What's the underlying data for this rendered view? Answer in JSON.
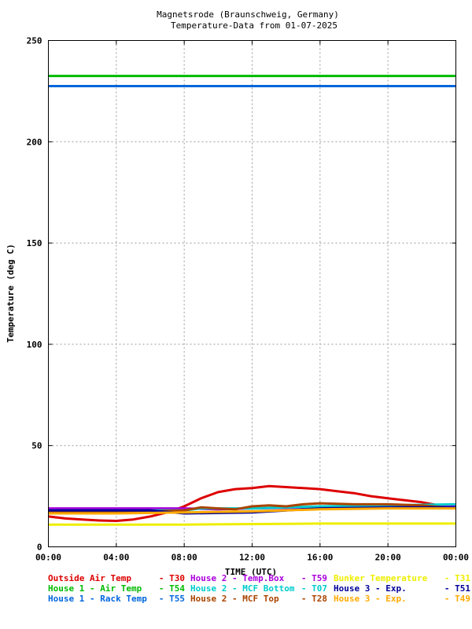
{
  "chart_data": {
    "type": "line",
    "title": "Magnetsrode (Braunschweig, Germany)",
    "subtitle": "Temperature-Data from 01-07-2025",
    "xlabel": "TIME (UTC)",
    "ylabel": "Temperature (deg C)",
    "xlim": [
      0,
      24
    ],
    "ylim": [
      0,
      250
    ],
    "x_ticks": [
      {
        "value": 0,
        "label": "00:00"
      },
      {
        "value": 4,
        "label": "04:00"
      },
      {
        "value": 8,
        "label": "08:00"
      },
      {
        "value": 12,
        "label": "12:00"
      },
      {
        "value": 16,
        "label": "16:00"
      },
      {
        "value": 20,
        "label": "20:00"
      },
      {
        "value": 24,
        "label": "00:00"
      }
    ],
    "y_ticks": [
      {
        "value": 0,
        "label": "0"
      },
      {
        "value": 50,
        "label": "50"
      },
      {
        "value": 100,
        "label": "100"
      },
      {
        "value": 150,
        "label": "150"
      },
      {
        "value": 200,
        "label": "200"
      },
      {
        "value": 250,
        "label": "250"
      }
    ],
    "grid": true,
    "legend_position": "bottom",
    "series": [
      {
        "name": "Outside Air Temp",
        "code": "T30",
        "color": "#dd0000",
        "x": [
          0,
          1,
          2,
          3,
          4,
          5,
          6,
          7,
          8,
          9,
          10,
          11,
          12,
          13,
          14,
          15,
          16,
          17,
          18,
          19,
          20,
          21,
          22,
          23,
          24
        ],
        "y": [
          15,
          14,
          13.5,
          13,
          12.8,
          13.5,
          15,
          17,
          20,
          24,
          27,
          28.5,
          29,
          30,
          29.5,
          29,
          28.5,
          27.5,
          26.5,
          25,
          24,
          23,
          22,
          20.5,
          20
        ]
      },
      {
        "name": "House 1 - Air  Temp",
        "code": "T54",
        "color": "#00bb00",
        "x": [
          0,
          24
        ],
        "y": [
          232.5,
          232.5
        ]
      },
      {
        "name": "House 1 - Rack Temp",
        "code": "T55",
        "color": "#0066dd",
        "x": [
          0,
          24
        ],
        "y": [
          227.5,
          227.5
        ]
      },
      {
        "name": "House 2 - Temp.Box",
        "code": "T59",
        "color": "#aa00dd",
        "x": [
          0,
          4,
          8,
          10,
          12,
          16,
          20,
          24
        ],
        "y": [
          19,
          19,
          19,
          18.5,
          19,
          19.5,
          20,
          20
        ]
      },
      {
        "name": "House 2 - MCF Bottom",
        "code": "T07",
        "color": "#00cccc",
        "x": [
          0,
          4,
          8,
          9,
          12,
          16,
          20,
          24
        ],
        "y": [
          18,
          18,
          18,
          19,
          19,
          20,
          20.5,
          21
        ]
      },
      {
        "name": "House 2 - MCF Top",
        "code": "T28",
        "color": "#aa4400",
        "x": [
          0,
          2,
          4,
          6,
          8,
          9,
          10,
          11,
          12,
          13,
          14,
          15,
          16,
          18,
          20,
          22,
          24
        ],
        "y": [
          17,
          17.5,
          17.5,
          17.5,
          18,
          19.5,
          19,
          18.5,
          20,
          20.5,
          20,
          21,
          21.5,
          21,
          21,
          20.5,
          19
        ]
      },
      {
        "name": "Bunker Temperature",
        "code": "T31",
        "color": "#eeee00",
        "x": [
          0,
          8,
          16,
          24
        ],
        "y": [
          11,
          11,
          11.5,
          11.5
        ]
      },
      {
        "name": "House 3 - Exp.",
        "code": "T51",
        "color": "#000099",
        "x": [
          0,
          6,
          8,
          12,
          16,
          20,
          24
        ],
        "y": [
          18,
          18,
          16.5,
          17,
          19,
          19.5,
          19.5
        ]
      },
      {
        "name": "House 3 - Exp.",
        "code": "T49",
        "color": "#ffaa00",
        "x": [
          0,
          4,
          8,
          12,
          16,
          20,
          24
        ],
        "y": [
          16.5,
          16.5,
          17,
          17.5,
          18.5,
          19,
          19
        ]
      }
    ]
  }
}
